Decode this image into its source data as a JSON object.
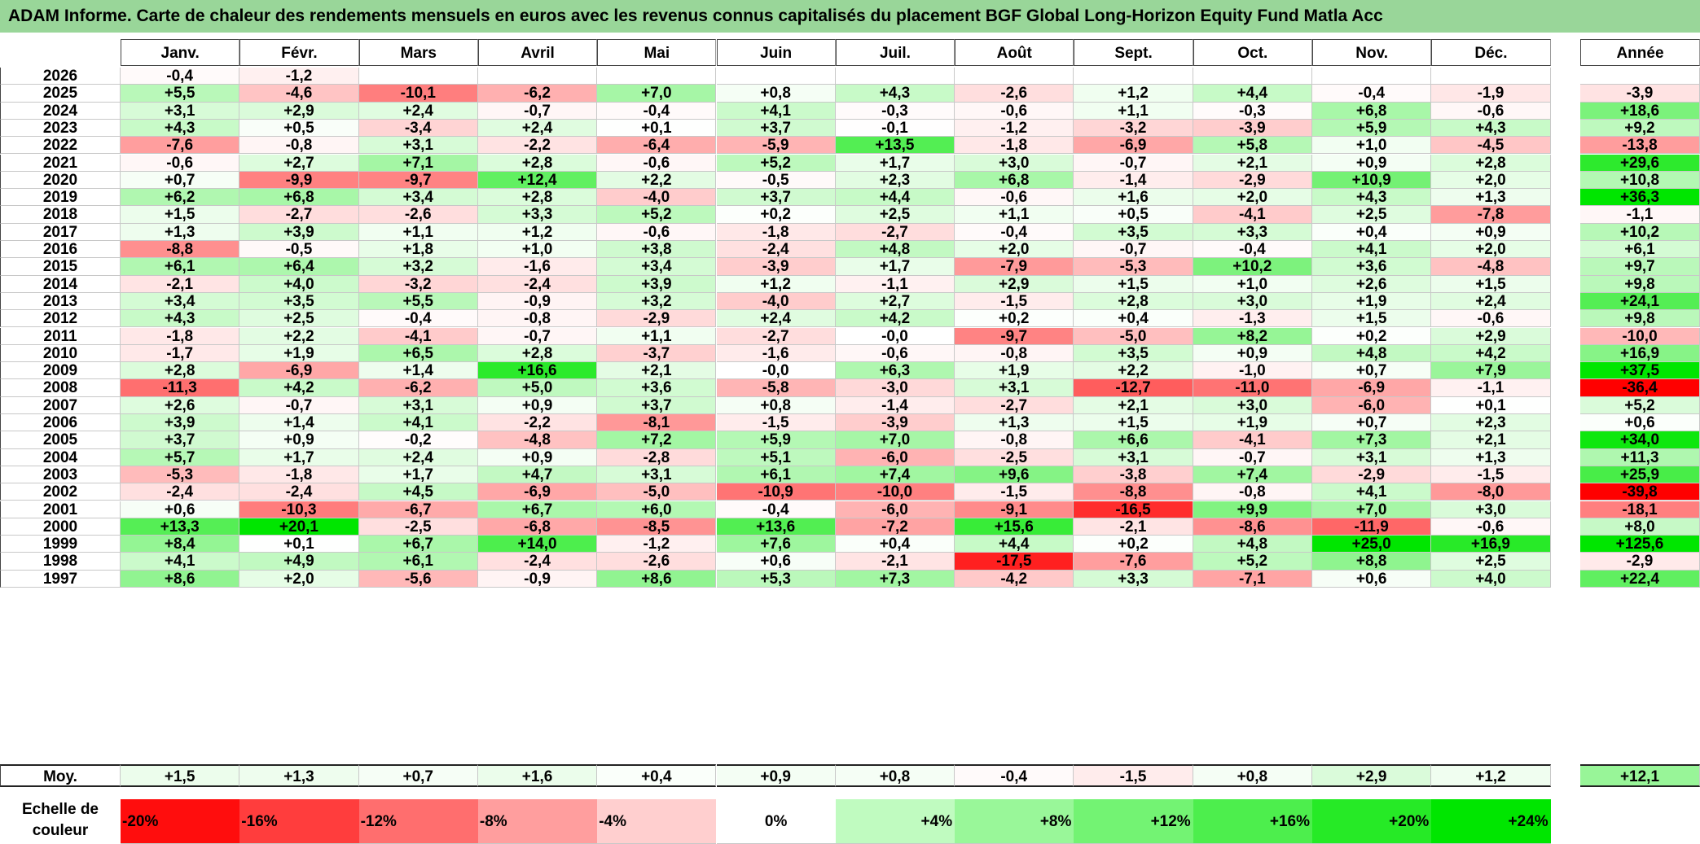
{
  "title": "ADAM Informe. Carte de chaleur des rendements mensuels en euros avec les revenus connus capitalisés du placement BGF Global Long-Horizon Equity Fund Matla Acc",
  "chart_data": {
    "type": "heatmap",
    "columns": [
      "Janv.",
      "Févr.",
      "Mars",
      "Avril",
      "Mai",
      "Juin",
      "Juil.",
      "Août",
      "Sept.",
      "Oct.",
      "Nov.",
      "Déc."
    ],
    "year_column": "Année",
    "average_label": "Moy.",
    "rows": [
      {
        "year": "2026",
        "months": [
          "-0,4",
          "-1,2",
          "",
          "",
          "",
          "",
          "",
          "",
          "",
          "",
          "",
          ""
        ],
        "annual": ""
      },
      {
        "year": "2025",
        "months": [
          "+5,5",
          "-4,6",
          "-10,1",
          "-6,2",
          "+7,0",
          "+0,8",
          "+4,3",
          "-2,6",
          "+1,2",
          "+4,4",
          "-0,4",
          "-1,9"
        ],
        "annual": "-3,9"
      },
      {
        "year": "2024",
        "months": [
          "+3,1",
          "+2,9",
          "+2,4",
          "-0,7",
          "-0,4",
          "+4,1",
          "-0,3",
          "-0,6",
          "+1,1",
          "-0,3",
          "+6,8",
          "-0,6"
        ],
        "annual": "+18,6"
      },
      {
        "year": "2023",
        "months": [
          "+4,3",
          "+0,5",
          "-3,4",
          "+2,4",
          "+0,1",
          "+3,7",
          "-0,1",
          "-1,2",
          "-3,2",
          "-3,9",
          "+5,9",
          "+4,3"
        ],
        "annual": "+9,2"
      },
      {
        "year": "2022",
        "months": [
          "-7,6",
          "-0,8",
          "+3,1",
          "-2,2",
          "-6,4",
          "-5,9",
          "+13,5",
          "-1,8",
          "-6,9",
          "+5,8",
          "+1,0",
          "-4,5"
        ],
        "annual": "-13,8"
      },
      {
        "year": "2021",
        "months": [
          "-0,6",
          "+2,7",
          "+7,1",
          "+2,8",
          "-0,6",
          "+5,2",
          "+1,7",
          "+3,0",
          "-0,7",
          "+2,1",
          "+0,9",
          "+2,8"
        ],
        "annual": "+29,6"
      },
      {
        "year": "2020",
        "months": [
          "+0,7",
          "-9,9",
          "-9,7",
          "+12,4",
          "+2,2",
          "-0,5",
          "+2,3",
          "+6,8",
          "-1,4",
          "-2,9",
          "+10,9",
          "+2,0"
        ],
        "annual": "+10,8"
      },
      {
        "year": "2019",
        "months": [
          "+6,2",
          "+6,8",
          "+3,4",
          "+2,8",
          "-4,0",
          "+3,7",
          "+4,4",
          "-0,6",
          "+1,6",
          "+2,0",
          "+4,3",
          "+1,3"
        ],
        "annual": "+36,3"
      },
      {
        "year": "2018",
        "months": [
          "+1,5",
          "-2,7",
          "-2,6",
          "+3,3",
          "+5,2",
          "+0,2",
          "+2,5",
          "+1,1",
          "+0,5",
          "-4,1",
          "+2,5",
          "-7,8"
        ],
        "annual": "-1,1"
      },
      {
        "year": "2017",
        "months": [
          "+1,3",
          "+3,9",
          "+1,1",
          "+1,2",
          "-0,6",
          "-1,8",
          "-2,7",
          "-0,4",
          "+3,5",
          "+3,3",
          "+0,4",
          "+0,9"
        ],
        "annual": "+10,2"
      },
      {
        "year": "2016",
        "months": [
          "-8,8",
          "-0,5",
          "+1,8",
          "+1,0",
          "+3,8",
          "-2,4",
          "+4,8",
          "+2,0",
          "-0,7",
          "-0,4",
          "+4,1",
          "+2,0"
        ],
        "annual": "+6,1"
      },
      {
        "year": "2015",
        "months": [
          "+6,1",
          "+6,4",
          "+3,2",
          "-1,6",
          "+3,4",
          "-3,9",
          "+1,7",
          "-7,9",
          "-5,3",
          "+10,2",
          "+3,6",
          "-4,8"
        ],
        "annual": "+9,7"
      },
      {
        "year": "2014",
        "months": [
          "-2,1",
          "+4,0",
          "-3,2",
          "-2,4",
          "+3,9",
          "+1,2",
          "-1,1",
          "+2,9",
          "+1,5",
          "+1,0",
          "+2,6",
          "+1,5"
        ],
        "annual": "+9,8"
      },
      {
        "year": "2013",
        "months": [
          "+3,4",
          "+3,5",
          "+5,5",
          "-0,9",
          "+3,2",
          "-4,0",
          "+2,7",
          "-1,5",
          "+2,8",
          "+3,0",
          "+1,9",
          "+2,4"
        ],
        "annual": "+24,1"
      },
      {
        "year": "2012",
        "months": [
          "+4,3",
          "+2,5",
          "-0,4",
          "-0,8",
          "-2,9",
          "+2,4",
          "+4,2",
          "+0,2",
          "+0,4",
          "-1,3",
          "+1,5",
          "-0,6"
        ],
        "annual": "+9,8"
      },
      {
        "year": "2011",
        "months": [
          "-1,8",
          "+2,2",
          "-4,1",
          "-0,7",
          "+1,1",
          "-2,7",
          "-0,0",
          "-9,7",
          "-5,0",
          "+8,2",
          "+0,2",
          "+2,9"
        ],
        "annual": "-10,0"
      },
      {
        "year": "2010",
        "months": [
          "-1,7",
          "+1,9",
          "+6,5",
          "+2,8",
          "-3,7",
          "-1,6",
          "-0,6",
          "-0,8",
          "+3,5",
          "+0,9",
          "+4,8",
          "+4,2"
        ],
        "annual": "+16,9"
      },
      {
        "year": "2009",
        "months": [
          "+2,8",
          "-6,9",
          "+1,4",
          "+16,6",
          "+2,1",
          "-0,0",
          "+6,3",
          "+1,9",
          "+2,2",
          "-1,0",
          "+0,7",
          "+7,9"
        ],
        "annual": "+37,5"
      },
      {
        "year": "2008",
        "months": [
          "-11,3",
          "+4,2",
          "-6,2",
          "+5,0",
          "+3,6",
          "-5,8",
          "-3,0",
          "+3,1",
          "-12,7",
          "-11,0",
          "-6,9",
          "-1,1"
        ],
        "annual": "-36,4"
      },
      {
        "year": "2007",
        "months": [
          "+2,6",
          "-0,7",
          "+3,1",
          "+0,9",
          "+3,7",
          "+0,8",
          "-1,4",
          "-2,7",
          "+2,1",
          "+3,0",
          "-6,0",
          "+0,1"
        ],
        "annual": "+5,2"
      },
      {
        "year": "2006",
        "months": [
          "+3,9",
          "+1,4",
          "+4,1",
          "-2,2",
          "-8,1",
          "-1,5",
          "-3,9",
          "+1,3",
          "+1,5",
          "+1,9",
          "+0,7",
          "+2,3"
        ],
        "annual": "+0,6"
      },
      {
        "year": "2005",
        "months": [
          "+3,7",
          "+0,9",
          "-0,2",
          "-4,8",
          "+7,2",
          "+5,9",
          "+7,0",
          "-0,8",
          "+6,6",
          "-4,1",
          "+7,3",
          "+2,1"
        ],
        "annual": "+34,0"
      },
      {
        "year": "2004",
        "months": [
          "+5,7",
          "+1,7",
          "+2,4",
          "+0,9",
          "-2,8",
          "+5,1",
          "-6,0",
          "-2,5",
          "+3,1",
          "-0,7",
          "+3,1",
          "+1,3"
        ],
        "annual": "+11,3"
      },
      {
        "year": "2003",
        "months": [
          "-5,3",
          "-1,8",
          "+1,7",
          "+4,7",
          "+3,1",
          "+6,1",
          "+7,4",
          "+9,6",
          "-3,8",
          "+7,4",
          "-2,9",
          "-1,5"
        ],
        "annual": "+25,9"
      },
      {
        "year": "2002",
        "months": [
          "-2,4",
          "-2,4",
          "+4,5",
          "-6,9",
          "-5,0",
          "-10,9",
          "-10,0",
          "-1,5",
          "-8,8",
          "-0,8",
          "+4,1",
          "-8,0"
        ],
        "annual": "-39,8"
      },
      {
        "year": "2001",
        "months": [
          "+0,6",
          "-10,3",
          "-6,7",
          "+6,7",
          "+6,0",
          "-0,4",
          "-6,0",
          "-9,1",
          "-16,5",
          "+9,9",
          "+7,0",
          "+3,0"
        ],
        "annual": "-18,1"
      },
      {
        "year": "2000",
        "months": [
          "+13,3",
          "+20,1",
          "-2,5",
          "-6,8",
          "-8,5",
          "+13,6",
          "-7,2",
          "+15,6",
          "-2,1",
          "-8,6",
          "-11,9",
          "-0,6"
        ],
        "annual": "+8,0"
      },
      {
        "year": "1999",
        "months": [
          "+8,4",
          "+0,1",
          "+6,7",
          "+14,0",
          "-1,2",
          "+7,6",
          "+0,4",
          "+4,4",
          "+0,2",
          "+4,8",
          "+25,0",
          "+16,9"
        ],
        "annual": "+125,6"
      },
      {
        "year": "1998",
        "months": [
          "+4,1",
          "+4,9",
          "+6,1",
          "-2,4",
          "-2,6",
          "+0,6",
          "-2,1",
          "-17,5",
          "-7,6",
          "+5,2",
          "+8,8",
          "+2,5"
        ],
        "annual": "-2,9"
      },
      {
        "year": "1997",
        "months": [
          "+8,6",
          "+2,0",
          "-5,6",
          "-0,9",
          "+8,6",
          "+5,3",
          "+7,3",
          "-4,2",
          "+3,3",
          "-7,1",
          "+0,6",
          "+4,0"
        ],
        "annual": "+22,4"
      }
    ],
    "averages": {
      "months": [
        "+1,5",
        "+1,3",
        "+0,7",
        "+1,6",
        "+0,4",
        "+0,9",
        "+0,8",
        "-0,4",
        "-1,5",
        "+0,8",
        "+2,9",
        "+1,2"
      ],
      "annual": "+12,1"
    },
    "scale": {
      "label": "Echelle de couleur",
      "steps": [
        "-20%",
        "-16%",
        "-12%",
        "-8%",
        "-4%",
        "0%",
        "+4%",
        "+8%",
        "+12%",
        "+16%",
        "+20%",
        "+24%"
      ],
      "values": [
        -20,
        -16,
        -12,
        -8,
        -4,
        0,
        4,
        8,
        12,
        16,
        20,
        24
      ]
    },
    "colors": {
      "negative_max": "#ff0000",
      "neutral": "#ffffff",
      "positive_max": "#00e600",
      "title_bg": "#99d699"
    }
  }
}
